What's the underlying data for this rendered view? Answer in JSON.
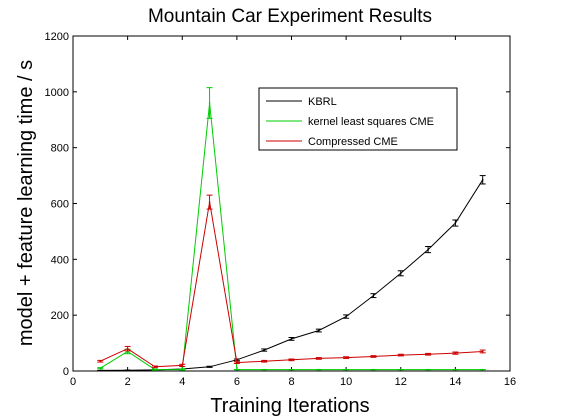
{
  "chart_data": {
    "type": "line",
    "title": "Mountain Car Experiment Results",
    "xlabel": "Training Iterations",
    "ylabel": "model + feature learning time / s",
    "xlim": [
      0,
      16
    ],
    "ylim": [
      0,
      1200
    ],
    "xticks": [
      0,
      2,
      4,
      6,
      8,
      10,
      12,
      14,
      16
    ],
    "yticks": [
      0,
      200,
      400,
      600,
      800,
      1000,
      1200
    ],
    "grid": false,
    "legend_position": "top-right",
    "x": [
      1,
      2,
      3,
      4,
      5,
      6,
      7,
      8,
      9,
      10,
      11,
      12,
      13,
      14,
      15
    ],
    "series": [
      {
        "name": "KBRL",
        "color": "#000000",
        "values": [
          2,
          3,
          4,
          7,
          15,
          40,
          75,
          115,
          145,
          195,
          270,
          350,
          435,
          530,
          685
        ],
        "errors": [
          0,
          0,
          0,
          0,
          2,
          3,
          4,
          5,
          5,
          6,
          7,
          9,
          11,
          11,
          15
        ]
      },
      {
        "name": "kernel least squares CME",
        "color": "#00cc00",
        "values": [
          10,
          70,
          5,
          5,
          960,
          5,
          5,
          5,
          5,
          5,
          5,
          5,
          5,
          5,
          5
        ],
        "errors": [
          2,
          8,
          2,
          2,
          55,
          0,
          0,
          0,
          0,
          0,
          0,
          0,
          0,
          0,
          0
        ]
      },
      {
        "name": "Compressed CME",
        "color": "#cc0000",
        "values": [
          35,
          80,
          15,
          20,
          605,
          30,
          35,
          40,
          45,
          48,
          52,
          57,
          60,
          64,
          70
        ],
        "errors": [
          3,
          8,
          3,
          4,
          25,
          3,
          3,
          3,
          3,
          3,
          3,
          3,
          3,
          4,
          5
        ]
      }
    ]
  }
}
